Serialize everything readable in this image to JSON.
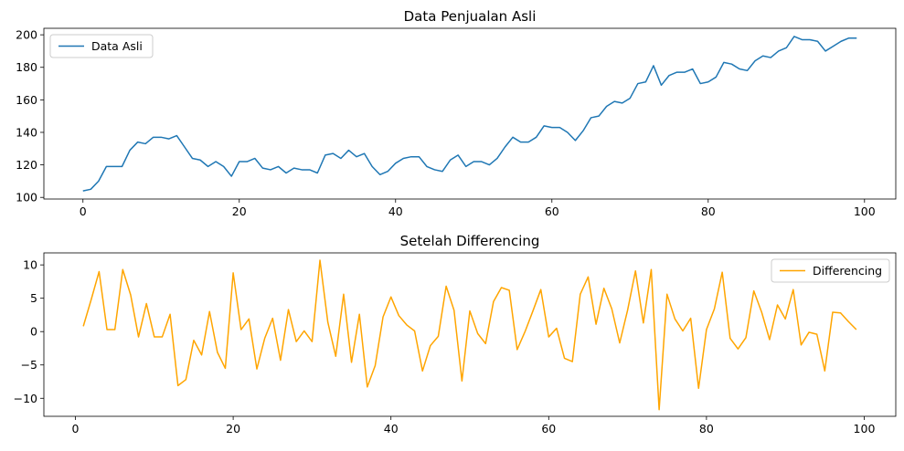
{
  "chart_data": [
    {
      "type": "line",
      "title": "Data Penjualan Asli",
      "xlabel": "",
      "ylabel": "",
      "xlim": [
        -5,
        104
      ],
      "ylim": [
        99,
        204
      ],
      "xticks": [
        0,
        20,
        40,
        60,
        80,
        100
      ],
      "yticks": [
        100,
        120,
        140,
        160,
        180,
        200
      ],
      "legend_position": "top-left",
      "series": [
        {
          "name": "Data Asli",
          "color": "#1f77b4",
          "x_start": 0,
          "values": [
            104,
            105,
            110,
            119,
            119,
            119,
            129,
            134,
            133,
            137,
            137,
            136,
            138,
            131,
            124,
            123,
            119,
            122,
            119,
            113,
            122,
            122,
            124,
            118,
            117,
            119,
            115,
            118,
            117,
            117,
            115,
            126,
            127,
            124,
            129,
            125,
            127,
            119,
            114,
            116,
            121,
            124,
            125,
            125,
            119,
            117,
            116,
            123,
            126,
            119,
            122,
            122,
            120,
            124,
            131,
            137,
            134,
            134,
            137,
            144,
            143,
            143,
            140,
            135,
            141,
            149,
            150,
            156,
            159,
            158,
            161,
            170,
            171,
            181,
            169,
            175,
            177,
            177,
            179,
            170,
            171,
            174,
            183,
            182,
            179,
            178,
            184,
            187,
            186,
            190,
            192,
            199,
            197,
            197,
            196,
            190,
            193,
            196,
            198,
            198
          ]
        }
      ]
    },
    {
      "type": "line",
      "title": "Setelah Differencing",
      "xlabel": "",
      "ylabel": "",
      "xlim": [
        -4,
        104
      ],
      "ylim": [
        -12.7,
        11.8
      ],
      "xticks": [
        0,
        20,
        40,
        60,
        80,
        100
      ],
      "yticks": [
        10,
        5,
        0,
        -5,
        -10
      ],
      "legend_position": "top-right",
      "series": [
        {
          "name": "Differencing",
          "color": "#ffa500",
          "x_start": 1,
          "values": [
            0.8,
            4.8,
            9.0,
            0.3,
            0.3,
            9.3,
            5.5,
            -0.8,
            4.2,
            -0.8,
            -0.8,
            2.6,
            -8.1,
            -7.2,
            -1.3,
            -3.5,
            3.0,
            -3.1,
            -5.5,
            8.8,
            0.3,
            1.9,
            -5.6,
            -1.0,
            2.0,
            -4.3,
            3.3,
            -1.5,
            0.1,
            -1.5,
            10.7,
            1.4,
            -3.7,
            5.6,
            -4.6,
            2.6,
            -8.3,
            -5.1,
            2.2,
            5.2,
            2.4,
            1.0,
            0.1,
            -5.9,
            -2.1,
            -0.7,
            6.8,
            3.2,
            -7.4,
            3.1,
            -0.3,
            -1.8,
            4.5,
            6.6,
            6.2,
            -2.7,
            0.0,
            3.1,
            6.3,
            -0.8,
            0.5,
            -4.0,
            -4.5,
            5.6,
            8.2,
            1.1,
            6.5,
            3.4,
            -1.7,
            3.2,
            9.1,
            1.3,
            9.3,
            -11.7,
            5.6,
            1.9,
            0.1,
            2.0,
            -8.5,
            0.3,
            3.4,
            8.9,
            -1.0,
            -2.6,
            -0.9,
            6.1,
            2.9,
            -1.2,
            4.0,
            1.9,
            6.3,
            -2.0,
            -0.1,
            -0.4,
            -5.9,
            2.9,
            2.8,
            1.5,
            0.3
          ]
        }
      ]
    }
  ]
}
